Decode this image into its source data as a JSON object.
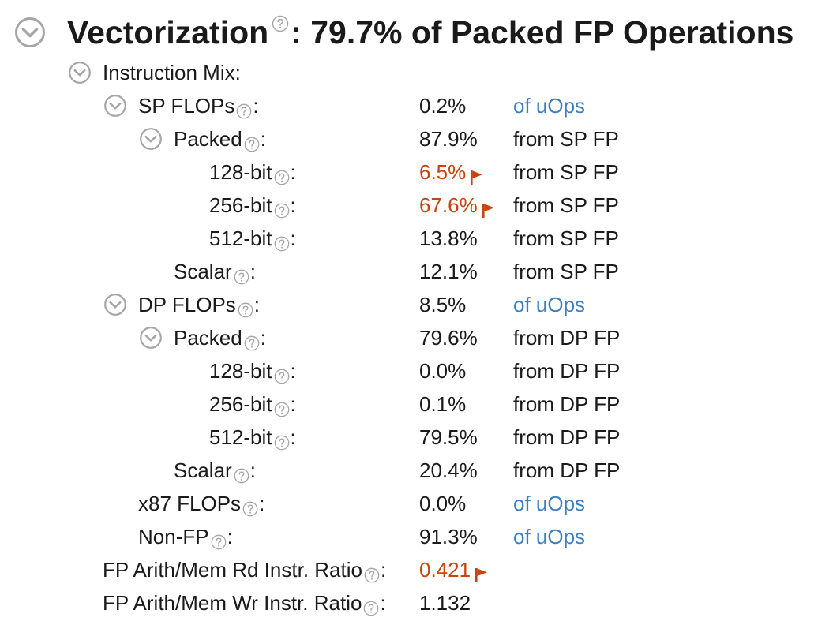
{
  "header": {
    "title": "Vectorization",
    "summary": ": 79.7% of Packed FP Operations"
  },
  "rows": [
    {
      "label": "Instruction Mix:",
      "value": "",
      "unit": "",
      "help": false,
      "toggle": true,
      "indent": 0
    },
    {
      "label": "SP FLOPs",
      "value": "0.2%",
      "unit": "of uOps",
      "help": true,
      "toggle": true,
      "indent": 1
    },
    {
      "label": "Packed",
      "value": "87.9%",
      "unit": "from SP FP",
      "help": true,
      "toggle": true,
      "indent": 2
    },
    {
      "label": "128-bit",
      "value": "6.5%",
      "unit": "from SP FP",
      "help": true,
      "toggle": false,
      "indent": 3,
      "flag": true
    },
    {
      "label": "256-bit",
      "value": "67.6%",
      "unit": "from SP FP",
      "help": true,
      "toggle": false,
      "indent": 3,
      "flag": true
    },
    {
      "label": "512-bit",
      "value": "13.8%",
      "unit": "from SP FP",
      "help": true,
      "toggle": false,
      "indent": 3
    },
    {
      "label": "Scalar",
      "value": "12.1%",
      "unit": "from SP FP",
      "help": true,
      "toggle": false,
      "indent": 2
    },
    {
      "label": "DP FLOPs",
      "value": "8.5%",
      "unit": "of uOps",
      "help": true,
      "toggle": true,
      "indent": 1
    },
    {
      "label": "Packed",
      "value": "79.6%",
      "unit": "from DP FP",
      "help": true,
      "toggle": true,
      "indent": 2
    },
    {
      "label": "128-bit",
      "value": "0.0%",
      "unit": "from DP FP",
      "help": true,
      "toggle": false,
      "indent": 3
    },
    {
      "label": "256-bit",
      "value": "0.1%",
      "unit": "from DP FP",
      "help": true,
      "toggle": false,
      "indent": 3
    },
    {
      "label": "512-bit",
      "value": "79.5%",
      "unit": "from DP FP",
      "help": true,
      "toggle": false,
      "indent": 3
    },
    {
      "label": "Scalar",
      "value": "20.4%",
      "unit": "from DP FP",
      "help": true,
      "toggle": false,
      "indent": 2
    },
    {
      "label": "x87 FLOPs",
      "value": "0.0%",
      "unit": "of uOps",
      "help": true,
      "toggle": false,
      "indent": 1
    },
    {
      "label": "Non-FP",
      "value": "91.3%",
      "unit": "of uOps",
      "help": true,
      "toggle": false,
      "indent": 1
    },
    {
      "label": "FP Arith/Mem Rd Instr. Ratio",
      "value": "0.421",
      "unit": "",
      "help": true,
      "toggle": false,
      "indent": 0,
      "flag": true
    },
    {
      "label": "FP Arith/Mem Wr Instr. Ratio",
      "value": "1.132",
      "unit": "",
      "help": true,
      "toggle": false,
      "indent": 0
    }
  ],
  "colors": {
    "text": "#1a1a1a",
    "link": "#3a7fc1",
    "warning": "#c7440f",
    "icon_gray": "#a6a6a6"
  },
  "icons": {
    "toggle": "chevron-down-circle-icon",
    "help": "question-circle-icon",
    "flag": "flag-icon"
  }
}
